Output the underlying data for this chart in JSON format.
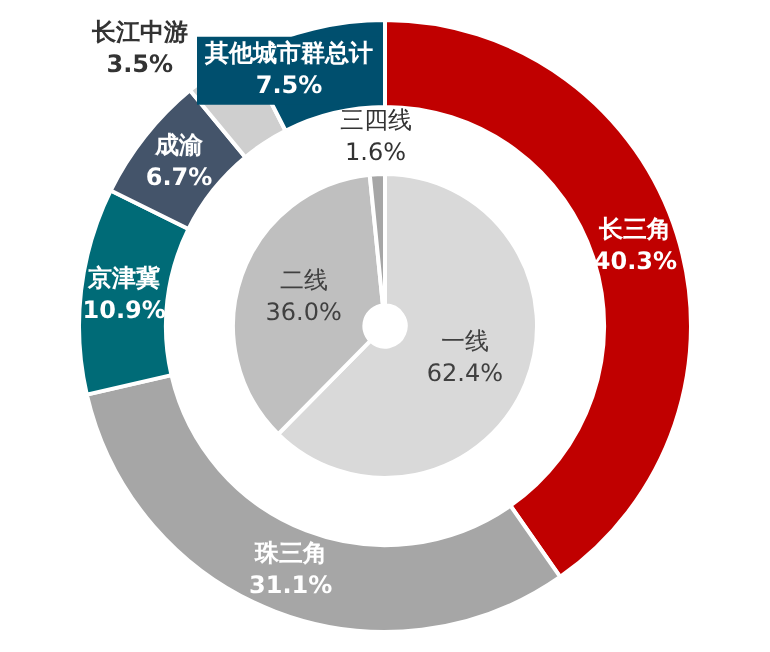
{
  "chart_data": [
    {
      "type": "donut",
      "categories": [
        "长三角",
        "珠三角",
        "京津冀",
        "成渝",
        "长江中游",
        "其他城市群总计"
      ],
      "values": [
        40.3,
        31.1,
        10.9,
        6.7,
        3.5,
        7.5
      ],
      "value_labels": [
        "40.3%",
        "31.1%",
        "10.9%",
        "6.7%",
        "3.5%",
        "7.5%"
      ],
      "colors": [
        "#c00000",
        "#a6a6a6",
        "#006b77",
        "#44546a",
        "#cfcfcf",
        "#004f6e"
      ],
      "legend": false
    },
    {
      "type": "donut",
      "categories": [
        "一线",
        "二线",
        "三四线"
      ],
      "values": [
        62.4,
        36.0,
        1.6
      ],
      "value_labels": [
        "62.4%",
        "36.0%",
        "1.6%"
      ],
      "colors": [
        "#d9d9d9",
        "#bfbfbf",
        "#a6a6a6"
      ],
      "legend": false
    }
  ]
}
